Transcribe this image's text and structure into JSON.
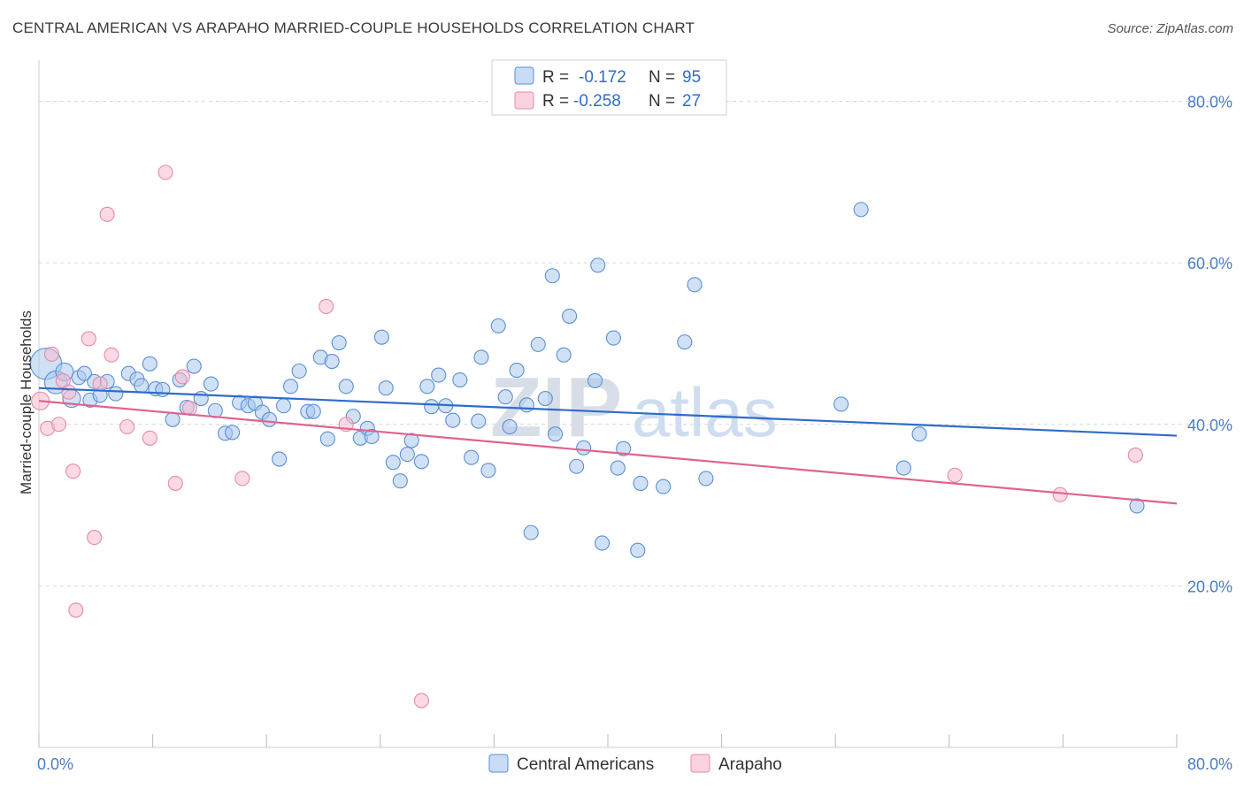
{
  "title": "CENTRAL AMERICAN VS ARAPAHO MARRIED-COUPLE HOUSEHOLDS CORRELATION CHART",
  "source": "Source: ZipAtlas.com",
  "watermark": {
    "zip": "ZIP",
    "atlas": "atlas"
  },
  "colors": {
    "blue_fill": "#a9c8ef",
    "blue_stroke": "#5b8fd6",
    "blue_line": "#2f6cc9",
    "pink_fill": "#f7bcd0",
    "pink_stroke": "#e88aa8",
    "pink_line": "#e0638f",
    "grid": "#d9d9d9",
    "tick_text": "#4a7cc7"
  },
  "legend": {
    "r_label": "R =",
    "n_label": "N =",
    "rows": [
      {
        "r": "-0.172",
        "n": "95",
        "color": "blue"
      },
      {
        "r": "-0.258",
        "n": "27",
        "color": "pink"
      }
    ]
  },
  "bottom_legend": [
    "Central Americans",
    "Arapaho"
  ],
  "chart_data": {
    "type": "scatter",
    "title": "CENTRAL AMERICAN VS ARAPAHO MARRIED-COUPLE HOUSEHOLDS CORRELATION CHART",
    "xlabel": "",
    "ylabel": "Married-couple Households",
    "xlim": [
      0,
      80
    ],
    "ylim": [
      0,
      84
    ],
    "x_tick_labels": [
      "0.0%",
      "80.0%"
    ],
    "y_ticks": [
      20,
      40,
      60,
      80
    ],
    "y_tick_labels": [
      "20.0%",
      "40.0%",
      "60.0%",
      "80.0%"
    ],
    "series": [
      {
        "name": "Central Americans",
        "color": "blue",
        "trend": {
          "x": [
            0,
            80
          ],
          "y": [
            44.5,
            38.6
          ]
        },
        "points": [
          [
            0.5,
            47.5,
            9
          ],
          [
            1.2,
            45.2,
            6
          ],
          [
            1.8,
            46.5,
            5
          ],
          [
            2.3,
            43.2,
            4
          ],
          [
            2.8,
            45.8,
            3
          ],
          [
            3.2,
            46.3,
            3
          ],
          [
            3.6,
            43.0,
            3
          ],
          [
            3.9,
            45.3,
            3
          ],
          [
            4.3,
            43.6,
            3
          ],
          [
            4.8,
            45.3,
            3
          ],
          [
            5.4,
            43.8,
            3
          ],
          [
            6.3,
            46.3,
            3
          ],
          [
            6.9,
            45.6,
            3
          ],
          [
            7.2,
            44.8,
            3
          ],
          [
            7.8,
            47.5,
            3
          ],
          [
            8.2,
            44.4,
            3
          ],
          [
            8.7,
            44.3,
            3
          ],
          [
            9.4,
            40.6,
            3
          ],
          [
            9.9,
            45.5,
            3
          ],
          [
            10.4,
            42.1,
            3
          ],
          [
            10.9,
            47.2,
            3
          ],
          [
            11.4,
            43.2,
            3
          ],
          [
            12.1,
            45.0,
            3
          ],
          [
            12.4,
            41.7,
            3
          ],
          [
            13.1,
            38.9,
            3
          ],
          [
            13.6,
            39.0,
            3
          ],
          [
            14.1,
            42.7,
            3
          ],
          [
            14.7,
            42.3,
            3
          ],
          [
            15.2,
            42.6,
            3
          ],
          [
            15.7,
            41.5,
            3
          ],
          [
            16.2,
            40.6,
            3
          ],
          [
            16.9,
            35.7,
            3
          ],
          [
            17.2,
            42.3,
            3
          ],
          [
            17.7,
            44.7,
            3
          ],
          [
            18.3,
            46.6,
            3
          ],
          [
            18.9,
            41.6,
            3
          ],
          [
            19.3,
            41.6,
            3
          ],
          [
            19.8,
            48.3,
            3
          ],
          [
            20.3,
            38.2,
            3
          ],
          [
            20.6,
            47.8,
            3
          ],
          [
            21.1,
            50.1,
            3
          ],
          [
            21.6,
            44.7,
            3
          ],
          [
            22.1,
            41.0,
            3
          ],
          [
            22.6,
            38.3,
            3
          ],
          [
            23.1,
            39.5,
            3
          ],
          [
            23.4,
            38.5,
            3
          ],
          [
            24.1,
            50.8,
            3
          ],
          [
            24.4,
            44.5,
            3
          ],
          [
            24.9,
            35.3,
            3
          ],
          [
            25.4,
            33.0,
            3
          ],
          [
            25.9,
            36.3,
            3
          ],
          [
            26.2,
            38.0,
            3
          ],
          [
            26.9,
            35.4,
            3
          ],
          [
            27.3,
            44.7,
            3
          ],
          [
            27.6,
            42.2,
            3
          ],
          [
            28.1,
            46.1,
            3
          ],
          [
            28.6,
            42.3,
            3
          ],
          [
            29.1,
            40.5,
            3
          ],
          [
            29.6,
            45.5,
            3
          ],
          [
            30.4,
            35.9,
            3
          ],
          [
            30.9,
            40.4,
            3
          ],
          [
            31.1,
            48.3,
            3
          ],
          [
            31.6,
            34.3,
            3
          ],
          [
            32.3,
            52.2,
            3
          ],
          [
            32.8,
            43.4,
            3
          ],
          [
            33.1,
            39.7,
            3
          ],
          [
            33.6,
            46.7,
            3
          ],
          [
            34.3,
            42.4,
            3
          ],
          [
            34.6,
            26.6,
            3
          ],
          [
            35.1,
            49.9,
            3
          ],
          [
            35.6,
            43.2,
            3
          ],
          [
            36.1,
            58.4,
            3
          ],
          [
            36.3,
            38.8,
            3
          ],
          [
            36.9,
            48.6,
            3
          ],
          [
            37.3,
            53.4,
            3
          ],
          [
            37.8,
            34.8,
            3
          ],
          [
            38.3,
            37.1,
            3
          ],
          [
            39.1,
            45.4,
            3
          ],
          [
            39.3,
            59.7,
            3
          ],
          [
            39.6,
            25.3,
            3
          ],
          [
            40.4,
            50.7,
            3
          ],
          [
            40.7,
            34.6,
            3
          ],
          [
            41.1,
            37.0,
            3
          ],
          [
            42.1,
            24.4,
            3
          ],
          [
            42.3,
            32.7,
            3
          ],
          [
            43.9,
            32.3,
            3
          ],
          [
            45.4,
            50.2,
            3
          ],
          [
            46.1,
            57.3,
            3
          ],
          [
            46.9,
            33.3,
            3
          ],
          [
            56.4,
            42.5,
            3
          ],
          [
            57.8,
            66.6,
            3
          ],
          [
            60.8,
            34.6,
            3
          ],
          [
            61.9,
            38.8,
            3
          ],
          [
            77.2,
            29.9,
            3
          ]
        ]
      },
      {
        "name": "Arapaho",
        "color": "pink",
        "trend": {
          "x": [
            0,
            80
          ],
          "y": [
            42.9,
            30.2
          ]
        },
        "points": [
          [
            0.1,
            42.9,
            4
          ],
          [
            0.6,
            39.5,
            3
          ],
          [
            0.9,
            48.7,
            3
          ],
          [
            1.4,
            40.0,
            3
          ],
          [
            1.7,
            45.4,
            3
          ],
          [
            2.1,
            44.0,
            3
          ],
          [
            2.4,
            34.2,
            3
          ],
          [
            2.6,
            17.0,
            3
          ],
          [
            3.5,
            50.6,
            3
          ],
          [
            3.9,
            26.0,
            3
          ],
          [
            4.3,
            45.0,
            3
          ],
          [
            4.8,
            66.0,
            3
          ],
          [
            5.1,
            48.6,
            3
          ],
          [
            6.2,
            39.7,
            3
          ],
          [
            7.8,
            38.3,
            3
          ],
          [
            8.9,
            71.2,
            3
          ],
          [
            9.6,
            32.7,
            3
          ],
          [
            10.1,
            45.9,
            3
          ],
          [
            10.6,
            42.0,
            3
          ],
          [
            14.3,
            33.3,
            3
          ],
          [
            20.2,
            54.6,
            3
          ],
          [
            21.6,
            40.0,
            3
          ],
          [
            26.9,
            5.8,
            3
          ],
          [
            64.4,
            33.7,
            3
          ],
          [
            71.8,
            31.3,
            3
          ],
          [
            77.1,
            36.2,
            3
          ]
        ]
      }
    ]
  }
}
